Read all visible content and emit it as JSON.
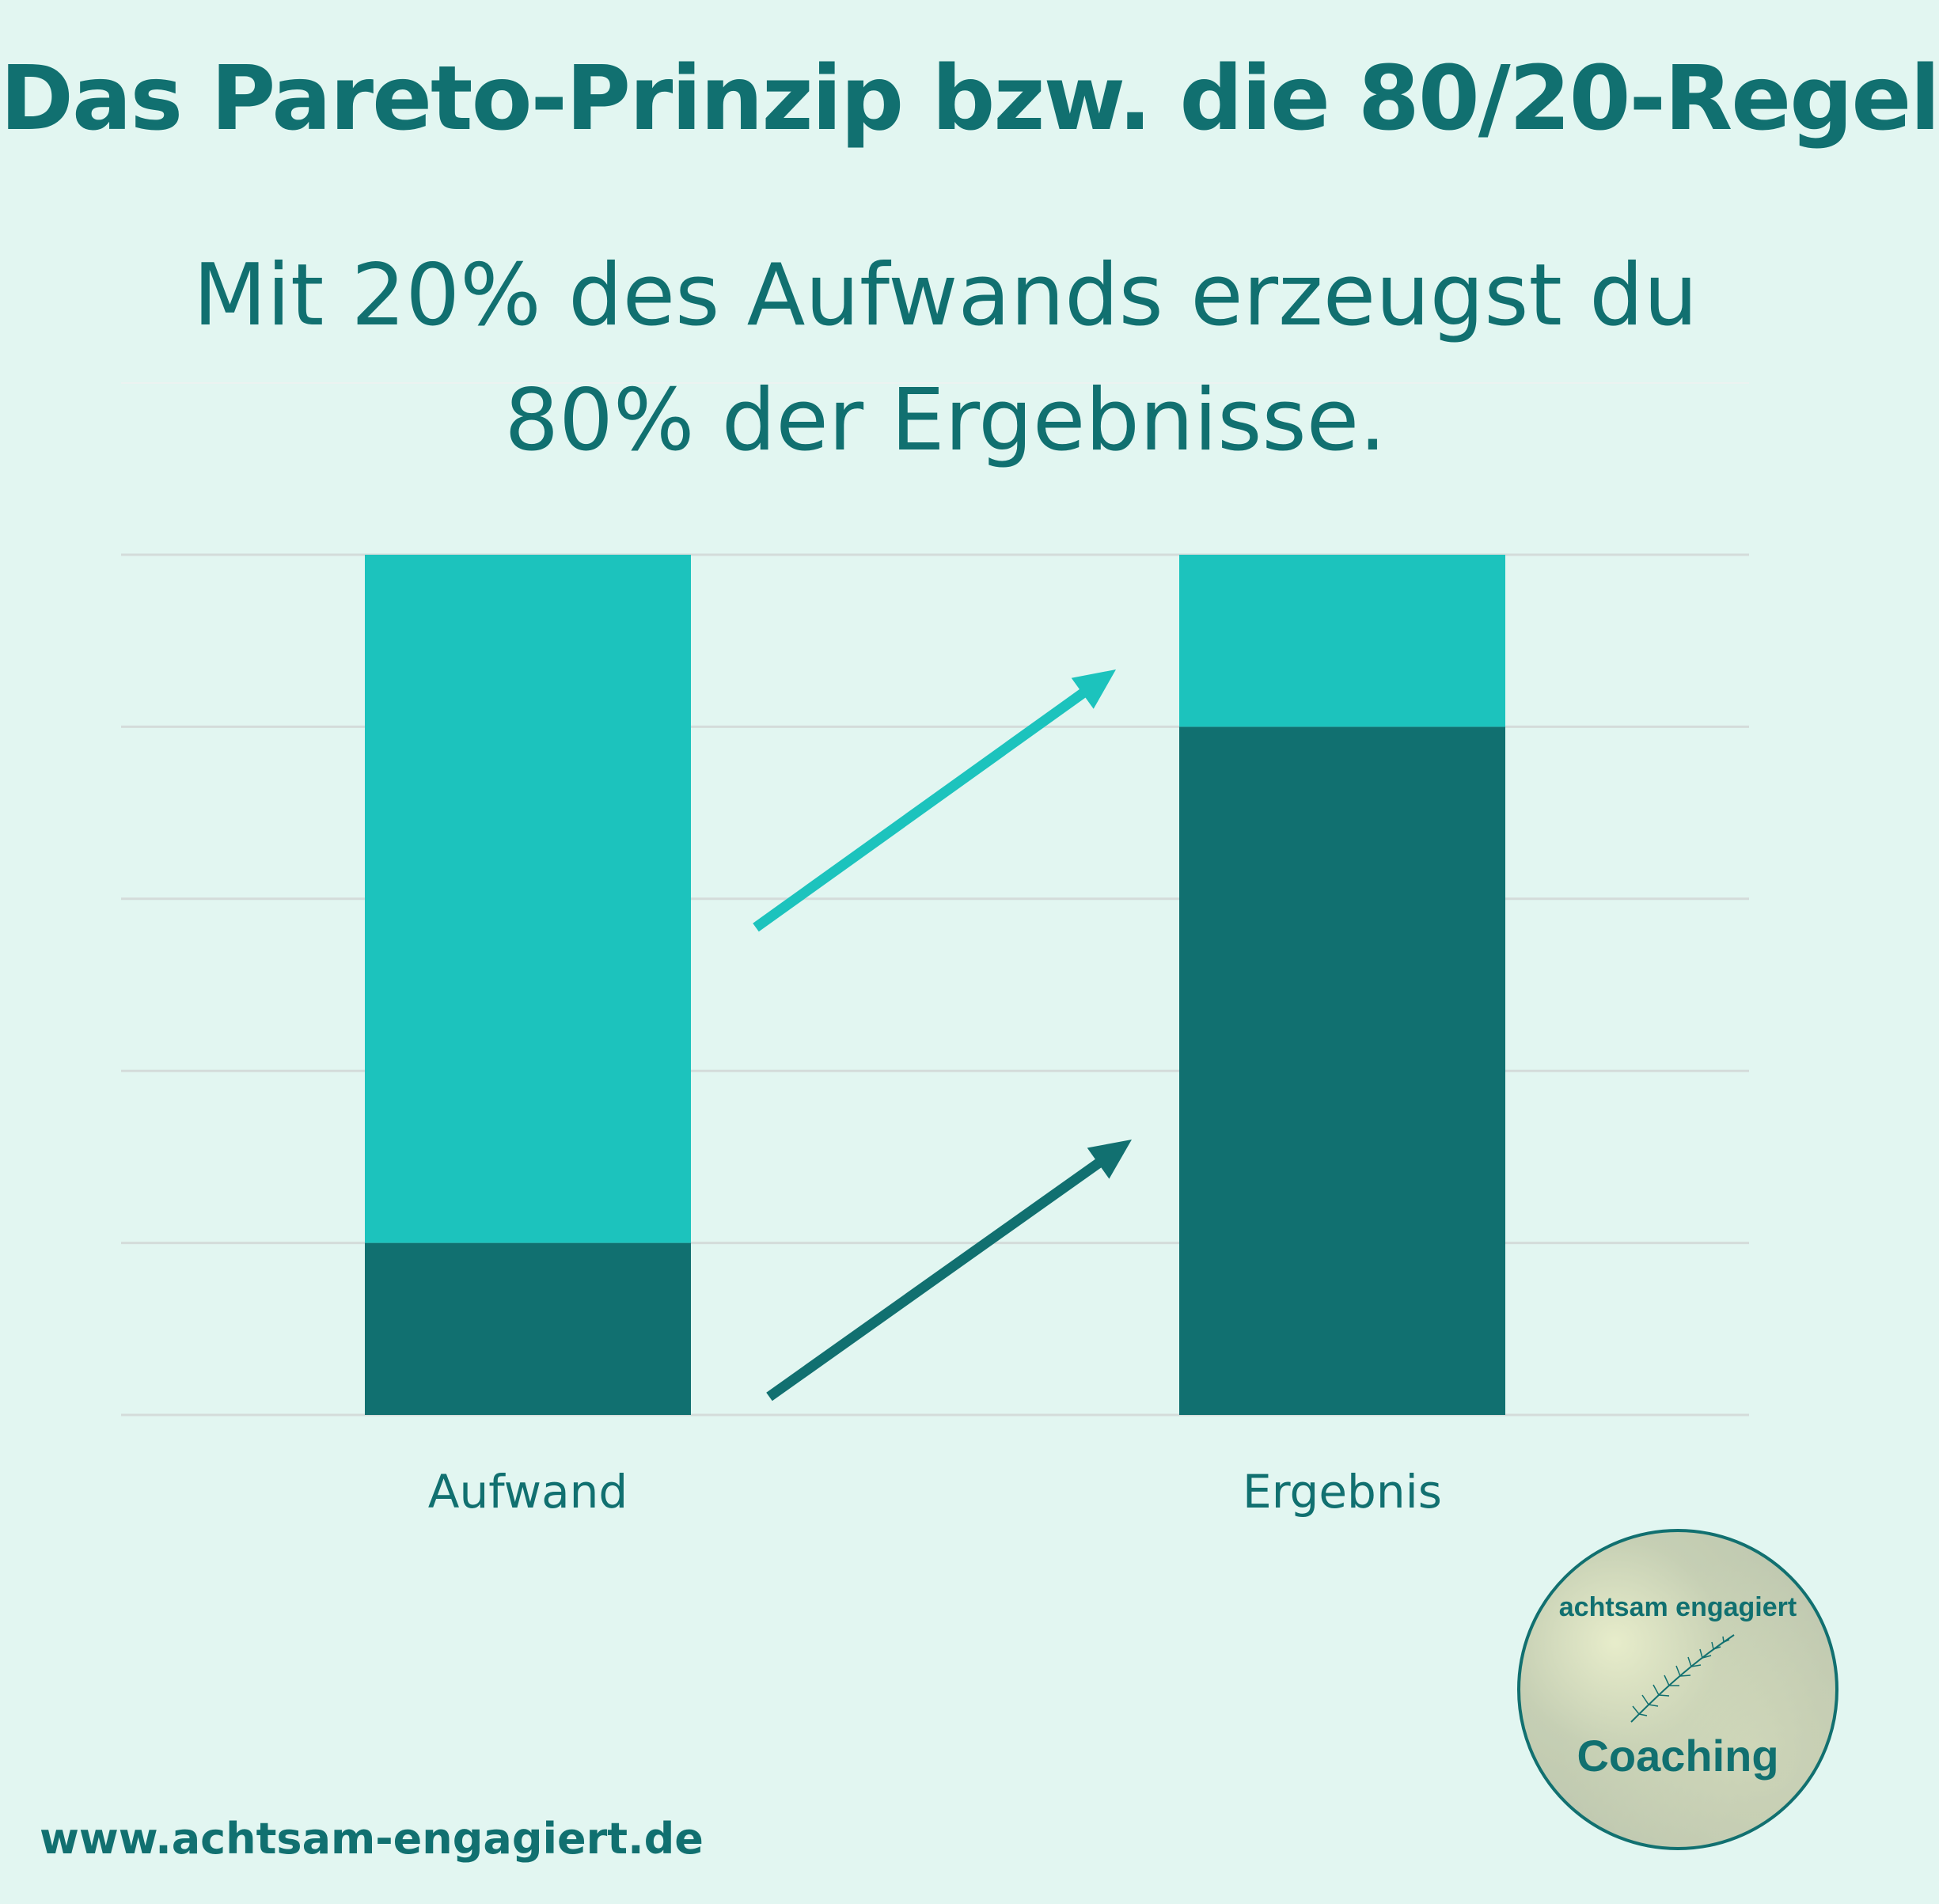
{
  "title": "Das Pareto-Prinzip bzw. die 80/20-Regel",
  "subtitle_lines": [
    "Mit 20% des Aufwands erzeugst du",
    "80% der Ergebnisse."
  ],
  "footer_url": "www.achtsam-engagiert.de",
  "logo": {
    "top_text": "achtsam engagiert",
    "bottom_text": "Coaching",
    "icon": "fern-leaf-icon"
  },
  "colors": {
    "background": "#e2f6f1",
    "text": "#117070",
    "dark_segment": "#117070",
    "light_segment": "#1cc3bd",
    "grid": "#d4dcda"
  },
  "chart_data": {
    "type": "bar",
    "stacked": true,
    "categories": [
      "Aufwand",
      "Ergebnis"
    ],
    "series": [
      {
        "values": [
          20,
          80
        ],
        "color": "#117070"
      },
      {
        "values": [
          80,
          20
        ],
        "color": "#1cc3bd"
      }
    ],
    "ylim": [
      0,
      100
    ],
    "grid": true,
    "legend": "none",
    "annotations": [
      {
        "type": "arrow",
        "from_category": "Aufwand",
        "to_category": "Ergebnis",
        "color": "#1cc3bd",
        "meaning": "upper segment to upper segment"
      },
      {
        "type": "arrow",
        "from_category": "Aufwand",
        "to_category": "Ergebnis",
        "color": "#117070",
        "meaning": "lower segment to lower segment"
      }
    ]
  }
}
